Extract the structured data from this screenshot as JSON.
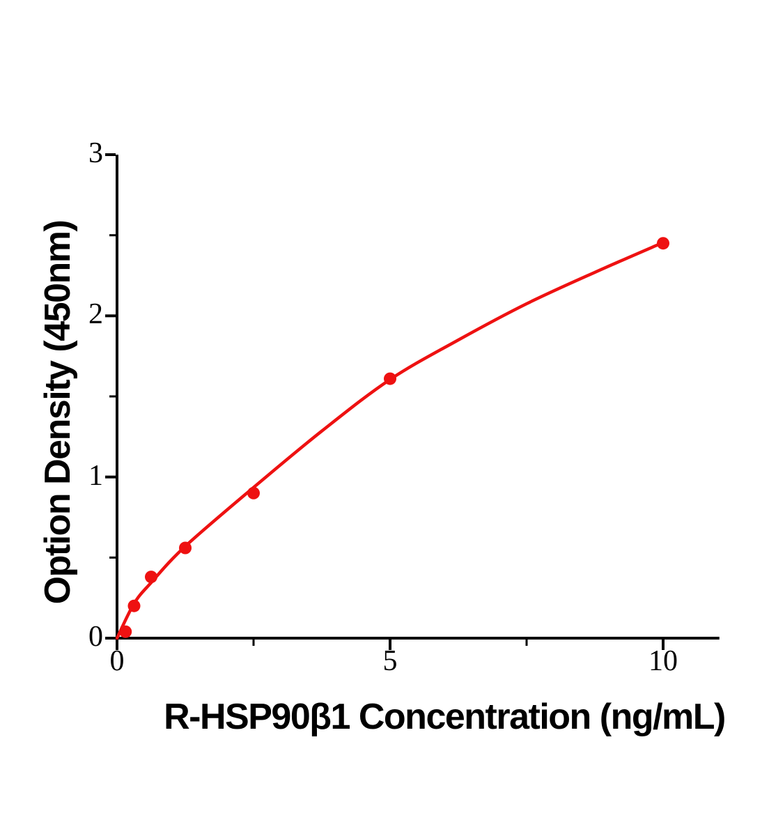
{
  "figure": {
    "background_color": "#ffffff",
    "axis_color": "#000000",
    "accent_red": "#ee1111"
  },
  "chart_data": {
    "type": "scatter",
    "title": "",
    "xlabel": "R-HSP90β1 Concentration (ng/mL)",
    "ylabel": "Option Density (450nm)",
    "x": [
      0.156,
      0.3125,
      0.625,
      1.25,
      2.5,
      5,
      10
    ],
    "y": [
      0.04,
      0.2,
      0.38,
      0.56,
      0.9,
      1.61,
      2.45
    ],
    "fit_curve_points": [
      [
        0,
        0
      ],
      [
        0.3125,
        0.215
      ],
      [
        0.625,
        0.345
      ],
      [
        1.25,
        0.57
      ],
      [
        2.5,
        0.935
      ],
      [
        3.75,
        1.285
      ],
      [
        5,
        1.605
      ],
      [
        6.25,
        1.85
      ],
      [
        7.5,
        2.075
      ],
      [
        8.75,
        2.27
      ],
      [
        10,
        2.455
      ]
    ],
    "xlim": [
      0,
      11.03
    ],
    "ylim": [
      0,
      3
    ],
    "x_major_ticks": [
      0,
      5,
      10
    ],
    "x_tick_labels": [
      "0",
      "5",
      "10"
    ],
    "x_minor_ticks": [
      2.5,
      7.5
    ],
    "y_major_ticks": [
      0,
      1,
      2,
      3
    ],
    "y_tick_labels": [
      "0",
      "1",
      "2",
      "3"
    ],
    "y_minor_ticks": [
      0.5,
      1.5,
      2.5
    ],
    "marker_color": "#ee1111",
    "line_color": "#ee1111",
    "grid": false,
    "legend": null,
    "frame": "open-left-bottom"
  }
}
